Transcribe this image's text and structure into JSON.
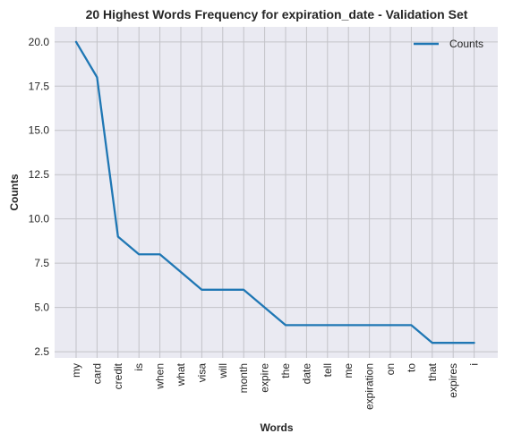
{
  "chart_data": {
    "type": "line",
    "title": "20 Highest Words Frequency for expiration_date - Validation Set",
    "xlabel": "Words",
    "ylabel": "Counts",
    "categories": [
      "my",
      "card",
      "credit",
      "is",
      "when",
      "what",
      "visa",
      "will",
      "month",
      "expire",
      "the",
      "date",
      "tell",
      "me",
      "expiration",
      "on",
      "to",
      "that",
      "expires",
      "i"
    ],
    "series": [
      {
        "name": "Counts",
        "values": [
          20,
          18,
          9,
          8,
          8,
          7,
          6,
          6,
          6,
          5,
          4,
          4,
          4,
          4,
          4,
          4,
          4,
          3,
          3,
          3
        ],
        "color": "#1f77b4"
      }
    ],
    "ylim": [
      2.15,
      20.85
    ],
    "yticks": [
      2.5,
      5.0,
      7.5,
      10.0,
      12.5,
      15.0,
      17.5,
      20.0
    ],
    "ytick_labels": [
      "2.5",
      "5.0",
      "7.5",
      "10.0",
      "12.5",
      "15.0",
      "17.5",
      "20.0"
    ],
    "grid": true,
    "legend_position": "top-right",
    "background_color": "#eaeaf2",
    "grid_color": "#c3c3c8"
  }
}
